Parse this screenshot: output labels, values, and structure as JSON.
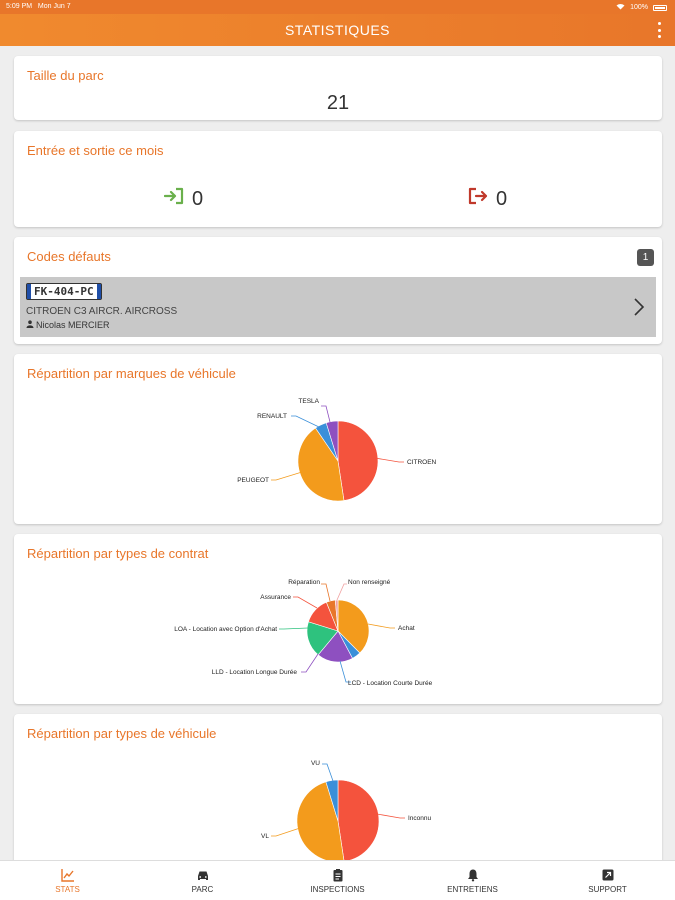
{
  "status_bar": {
    "time": "5:09 PM",
    "date": "Mon Jun 7",
    "battery": "100%"
  },
  "header": {
    "title": "STATISTIQUES"
  },
  "fleet_size": {
    "title": "Taille du parc",
    "value": "21"
  },
  "in_out": {
    "title": "Entrée et sortie ce mois",
    "in_value": "0",
    "out_value": "0"
  },
  "defects": {
    "title": "Codes défauts",
    "count": "1",
    "items": [
      {
        "plate": "FK-404-PC",
        "model": "CITROEN C3 AIRCR. AIRCROSS",
        "driver": "Nicolas MERCIER"
      }
    ]
  },
  "chart_data": [
    {
      "type": "pie",
      "title": "Répartition par marques de véhicule",
      "labels": [
        "CITROEN",
        "PEUGEOT",
        "RENAULT",
        "TESLA"
      ],
      "values": [
        10,
        9,
        1,
        1
      ],
      "colors": [
        "#f4533d",
        "#f39b1c",
        "#3a8fd9",
        "#8e50c0"
      ]
    },
    {
      "type": "pie",
      "title": "Répartition par types de contrat",
      "labels": [
        "Achat",
        "LCD - Location Courte Durée",
        "LLD - Location Longue Durée",
        "LOA - Location avec Option d'Achat",
        "Assurance",
        "Réparation",
        "Non renseigné"
      ],
      "values": [
        8,
        1,
        4,
        4,
        3,
        1,
        0.3
      ],
      "colors": [
        "#f39b1c",
        "#3a8fd9",
        "#8e50c0",
        "#2ec27e",
        "#f4533d",
        "#e8762a",
        "#f0a0a0"
      ]
    },
    {
      "type": "pie",
      "title": "Répartition par types de véhicule",
      "labels": [
        "Inconnu",
        "VL",
        "VU"
      ],
      "values": [
        10,
        10,
        1
      ],
      "colors": [
        "#f4533d",
        "#f39b1c",
        "#3a8fd9"
      ]
    }
  ],
  "bottom_nav": [
    {
      "label": "STATS",
      "icon": "chart-icon",
      "active": true
    },
    {
      "label": "PARC",
      "icon": "car-icon",
      "active": false
    },
    {
      "label": "INSPECTIONS",
      "icon": "clipboard-icon",
      "active": false
    },
    {
      "label": "ENTRETIENS",
      "icon": "bell-icon",
      "active": false
    },
    {
      "label": "SUPPORT",
      "icon": "support-icon",
      "active": false
    }
  ]
}
